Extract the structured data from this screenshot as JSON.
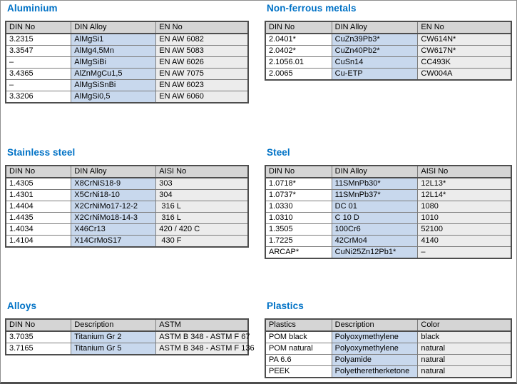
{
  "theme": {
    "title_color": "#0072C6",
    "header_bg": "#D5D5D5",
    "din_alloy_col_bg": "#C8D8ED",
    "third_col_bg": "#ECECEC",
    "table_border": "#4D4D4D",
    "cell_border": "#7D7D7D",
    "page_border": "#8F8F8F",
    "page_bottom_border": "#4E4E4E"
  },
  "sections": [
    {
      "id": "aluminium",
      "title": "Aluminium",
      "columns": [
        "DIN No",
        "DIN Alloy",
        "EN No"
      ],
      "rows": [
        [
          "3.2315",
          "AlMgSi1",
          "EN AW 6082"
        ],
        [
          "3.3547",
          "AlMg4,5Mn",
          "EN AW 5083"
        ],
        [
          "–",
          "AlMgSiBi",
          "EN AW 6026"
        ],
        [
          "3.4365",
          "AlZnMgCu1,5",
          "EN AW 7075"
        ],
        [
          "–",
          "AlMgSiSnBi",
          "EN AW 6023"
        ],
        [
          "3.3206",
          "AlMgSi0,5",
          "EN AW 6060"
        ]
      ]
    },
    {
      "id": "non-ferrous-metals",
      "title": "Non-ferrous metals",
      "columns": [
        "DIN No",
        "DIN Alloy",
        "EN No"
      ],
      "rows": [
        [
          "2.0401*",
          "CuZn39Pb3*",
          "CW614N*"
        ],
        [
          "2.0402*",
          "CuZn40Pb2*",
          "CW617N*"
        ],
        [
          "2.1056.01",
          "CuSn14",
          "CC493K"
        ],
        [
          "2.0065",
          "Cu-ETP",
          "CW004A"
        ]
      ]
    },
    {
      "id": "stainless-steel",
      "title": "Stainless steel",
      "columns": [
        "DIN No",
        "DIN Alloy",
        "AISI No"
      ],
      "rows": [
        [
          "1.4305",
          "X8CrNiS18-9",
          "303"
        ],
        [
          "1.4301",
          "X5CrNi18-10",
          "304"
        ],
        [
          "1.4404",
          "X2CrNiMo17-12-2",
          " 316 L"
        ],
        [
          "1.4435",
          "X2CrNiMo18-14-3",
          " 316 L"
        ],
        [
          "1.4034",
          "X46Cr13",
          "420 / 420 C"
        ],
        [
          "1.4104",
          "X14CrMoS17",
          " 430 F"
        ]
      ]
    },
    {
      "id": "steel",
      "title": "Steel",
      "columns": [
        "DIN No",
        "DIN Alloy",
        "AISI No"
      ],
      "rows": [
        [
          "1.0718*",
          "11SMnPb30*",
          "12L13*"
        ],
        [
          "1.0737*",
          "11SMnPb37*",
          "12L14*"
        ],
        [
          "1.0330",
          "DC 01",
          "1080"
        ],
        [
          "1.0310",
          "C 10 D",
          "1010"
        ],
        [
          "1.3505",
          "100Cr6",
          "52100"
        ],
        [
          "1.7225",
          "42CrMo4",
          "4140"
        ],
        [
          "ARCAP*",
          "CuNi25Zn12Pb1*",
          "–"
        ]
      ]
    },
    {
      "id": "alloys",
      "title": "Alloys",
      "columns": [
        "DIN No",
        "Description",
        "ASTM"
      ],
      "rows": [
        [
          "3.7035",
          "Titanium Gr 2",
          "ASTM B 348 - ASTM F 67"
        ],
        [
          "3.7165",
          "Titanium Gr 5",
          "ASTM B 348 - ASTM F 136"
        ]
      ]
    },
    {
      "id": "plastics",
      "title": "Plastics",
      "columns": [
        "Plastics",
        "Description",
        "Color"
      ],
      "rows": [
        [
          "POM black",
          "Polyoxymethylene",
          "black"
        ],
        [
          "POM natural",
          "Polyoxymethylene",
          "natural"
        ],
        [
          "PA 6.6",
          "Polyamide",
          "natural"
        ],
        [
          "PEEK",
          "Polyetheretherketone",
          "natural"
        ]
      ]
    }
  ]
}
